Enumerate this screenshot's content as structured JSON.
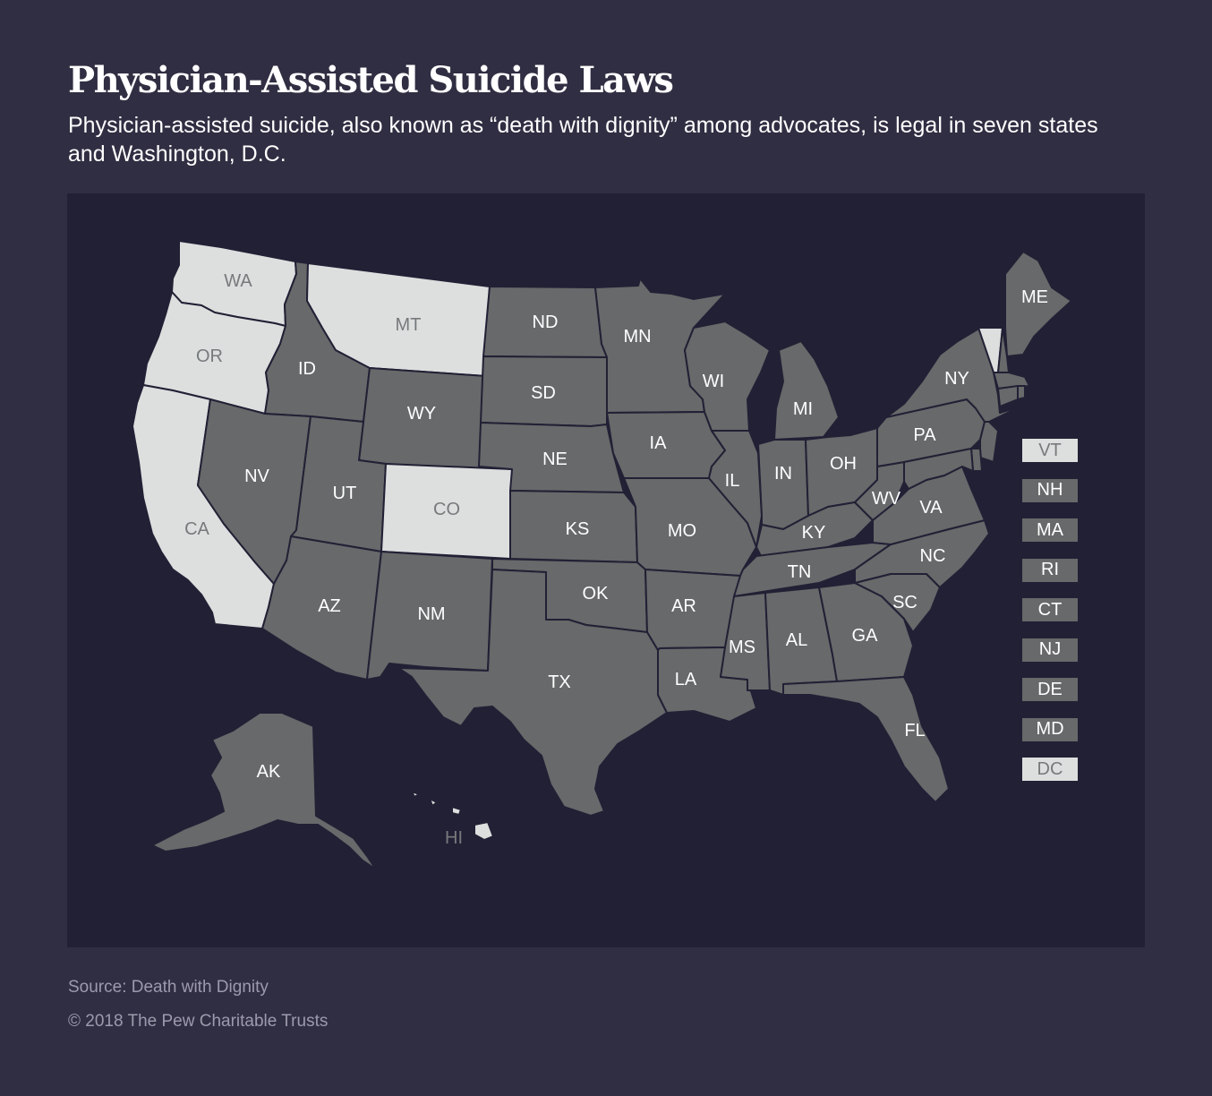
{
  "header": {
    "title": "Physician-Assisted Suicide Laws",
    "subtitle": "Physician-assisted suicide, also known as “death with dignity” among advocates, is legal in seven states and Washington, D.C."
  },
  "colors": {
    "legal": "#dcdfde",
    "not_legal": "#67696a",
    "background": "#302e42",
    "map_panel": "#222035"
  },
  "map": {
    "states": [
      {
        "code": "WA",
        "legal": true
      },
      {
        "code": "OR",
        "legal": true
      },
      {
        "code": "CA",
        "legal": true
      },
      {
        "code": "MT",
        "legal": true
      },
      {
        "code": "CO",
        "legal": true
      },
      {
        "code": "HI",
        "legal": true
      },
      {
        "code": "ID",
        "legal": false
      },
      {
        "code": "NV",
        "legal": false
      },
      {
        "code": "UT",
        "legal": false
      },
      {
        "code": "AZ",
        "legal": false
      },
      {
        "code": "WY",
        "legal": false
      },
      {
        "code": "NM",
        "legal": false
      },
      {
        "code": "ND",
        "legal": false
      },
      {
        "code": "SD",
        "legal": false
      },
      {
        "code": "NE",
        "legal": false
      },
      {
        "code": "KS",
        "legal": false
      },
      {
        "code": "OK",
        "legal": false
      },
      {
        "code": "TX",
        "legal": false
      },
      {
        "code": "MN",
        "legal": false
      },
      {
        "code": "IA",
        "legal": false
      },
      {
        "code": "MO",
        "legal": false
      },
      {
        "code": "AR",
        "legal": false
      },
      {
        "code": "LA",
        "legal": false
      },
      {
        "code": "WI",
        "legal": false
      },
      {
        "code": "IL",
        "legal": false
      },
      {
        "code": "MI",
        "legal": false
      },
      {
        "code": "IN",
        "legal": false
      },
      {
        "code": "OH",
        "legal": false
      },
      {
        "code": "KY",
        "legal": false
      },
      {
        "code": "TN",
        "legal": false
      },
      {
        "code": "MS",
        "legal": false
      },
      {
        "code": "AL",
        "legal": false
      },
      {
        "code": "GA",
        "legal": false
      },
      {
        "code": "FL",
        "legal": false
      },
      {
        "code": "SC",
        "legal": false
      },
      {
        "code": "NC",
        "legal": false
      },
      {
        "code": "VA",
        "legal": false
      },
      {
        "code": "WV",
        "legal": false
      },
      {
        "code": "PA",
        "legal": false
      },
      {
        "code": "NY",
        "legal": false
      },
      {
        "code": "ME",
        "legal": false
      },
      {
        "code": "AK",
        "legal": false
      }
    ],
    "small_states": [
      {
        "code": "VT",
        "legal": true
      },
      {
        "code": "NH",
        "legal": false
      },
      {
        "code": "MA",
        "legal": false
      },
      {
        "code": "RI",
        "legal": false
      },
      {
        "code": "CT",
        "legal": false
      },
      {
        "code": "NJ",
        "legal": false
      },
      {
        "code": "DE",
        "legal": false
      },
      {
        "code": "MD",
        "legal": false
      },
      {
        "code": "DC",
        "legal": true
      }
    ]
  },
  "footer": {
    "source": "Source: Death with Dignity",
    "copyright": "© 2018 The Pew Charitable Trusts"
  }
}
